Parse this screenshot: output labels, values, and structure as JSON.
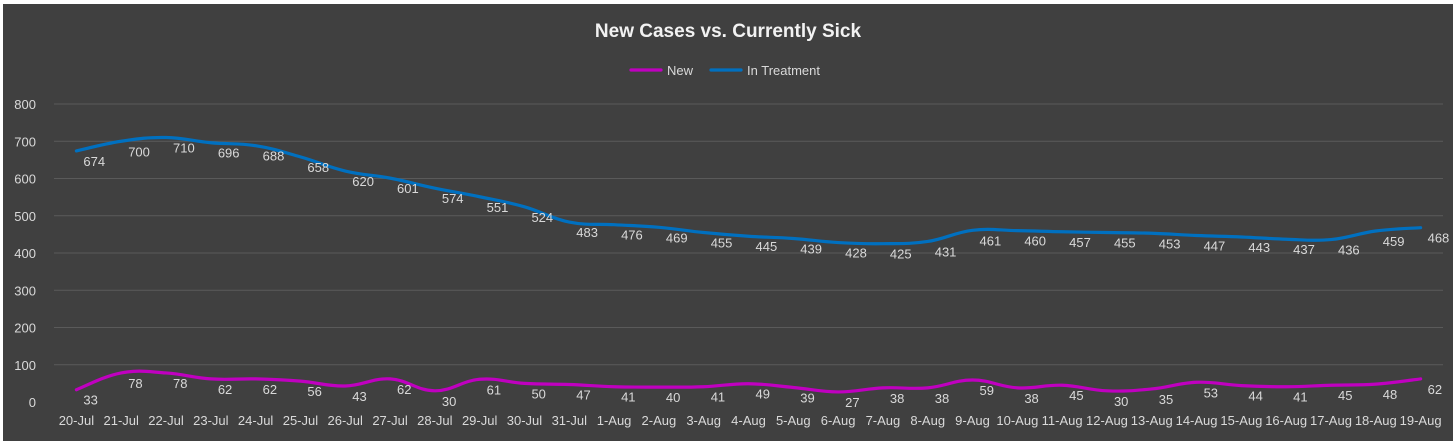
{
  "chart_data": {
    "type": "line",
    "title": "New Cases vs. Currently Sick",
    "xlabel": "",
    "ylabel": "",
    "ylim": [
      0,
      800
    ],
    "yticks": [
      0,
      100,
      200,
      300,
      400,
      500,
      600,
      700,
      800
    ],
    "grid": true,
    "legend_position": "top",
    "categories": [
      "20-Jul",
      "21-Jul",
      "22-Jul",
      "23-Jul",
      "24-Jul",
      "25-Jul",
      "26-Jul",
      "27-Jul",
      "28-Jul",
      "29-Jul",
      "30-Jul",
      "31-Jul",
      "1-Aug",
      "2-Aug",
      "3-Aug",
      "4-Aug",
      "5-Aug",
      "6-Aug",
      "7-Aug",
      "8-Aug",
      "9-Aug",
      "10-Aug",
      "11-Aug",
      "12-Aug",
      "13-Aug",
      "14-Aug",
      "15-Aug",
      "16-Aug",
      "17-Aug",
      "18-Aug",
      "19-Aug"
    ],
    "series": [
      {
        "name": "New",
        "color": "#c000c0",
        "values": [
          33,
          78,
          78,
          62,
          62,
          56,
          43,
          62,
          30,
          61,
          50,
          47,
          41,
          40,
          41,
          49,
          39,
          27,
          38,
          38,
          59,
          38,
          45,
          30,
          35,
          53,
          44,
          41,
          45,
          48,
          62
        ]
      },
      {
        "name": "In Treatment",
        "color": "#0070c0",
        "values": [
          674,
          700,
          710,
          696,
          688,
          658,
          620,
          601,
          574,
          551,
          524,
          483,
          476,
          469,
          455,
          445,
          439,
          428,
          425,
          431,
          461,
          460,
          457,
          455,
          453,
          447,
          443,
          437,
          436,
          459,
          468
        ]
      }
    ],
    "colors": {
      "background": "#404040",
      "gridline": "#5a5a5a",
      "text": "#d9d9d9",
      "title": "#f2f2f2"
    }
  }
}
